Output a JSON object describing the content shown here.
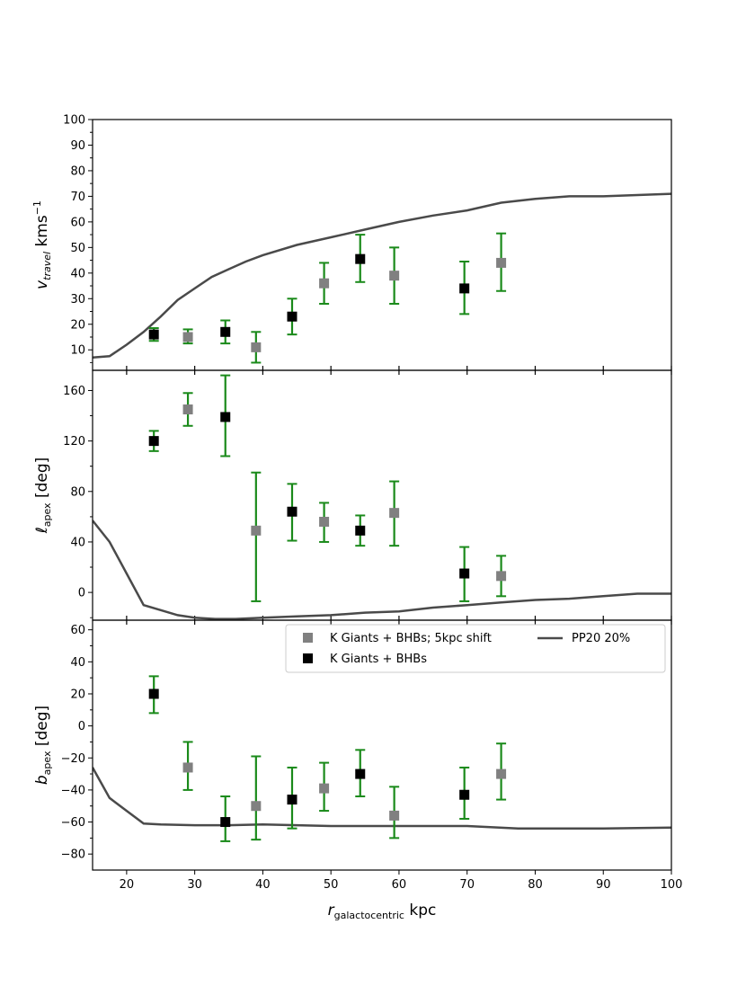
{
  "chart_data": {
    "type": "scatter",
    "shared_x": {
      "label_var": "r",
      "label_sub": "galactocentric",
      "label_unit": " kpc",
      "xlim": [
        15,
        100
      ],
      "ticks": [
        20,
        30,
        40,
        50,
        60,
        70,
        80,
        90,
        100
      ],
      "tick_labels": [
        "20",
        "30",
        "40",
        "50",
        "60",
        "70",
        "80",
        "90",
        "100"
      ]
    },
    "legend": {
      "location": "upper-right of bottom panel",
      "entries": [
        {
          "label": "K Giants + BHBs; 5kpc shift",
          "marker": "square",
          "color": "#808080"
        },
        {
          "label": "K Giants + BHBs",
          "marker": "square",
          "color": "#000000"
        },
        {
          "label": "PP20 20%",
          "marker": "line",
          "color": "#4a4a4a"
        }
      ]
    },
    "colors": {
      "shifted": "#808080",
      "unshifted": "#000000",
      "errorbar": "#1a8a1a",
      "model_line": "#4a4a4a"
    },
    "panels": [
      {
        "id": "v_travel",
        "ylabel_var": "v",
        "ylabel_sub": "travel",
        "ylabel_unit": " kms",
        "ylabel_sup": "−1",
        "ylim": [
          2,
          100
        ],
        "ticks": [
          10,
          20,
          30,
          40,
          50,
          60,
          70,
          80,
          90,
          100
        ],
        "tick_labels": [
          "10",
          "20",
          "30",
          "40",
          "50",
          "60",
          "70",
          "80",
          "90",
          "100"
        ],
        "series": [
          {
            "name": "K Giants + BHBs; 5kpc shift",
            "x": [
              29,
              39,
              49,
              59.3,
              75
            ],
            "y": [
              15,
              11,
              36,
              39,
              44
            ],
            "yerr_low": [
              2.5,
              6,
              8,
              11,
              11
            ],
            "yerr_high": [
              3,
              6,
              8,
              11,
              11.5
            ]
          },
          {
            "name": "K Giants + BHBs",
            "x": [
              24,
              34.5,
              44.3,
              54.3,
              69.6
            ],
            "y": [
              16,
              17,
              23,
              45.5,
              34
            ],
            "yerr_low": [
              2.5,
              4.5,
              7,
              9,
              10
            ],
            "yerr_high": [
              2.5,
              4.5,
              7,
              9.5,
              10.5
            ]
          },
          {
            "name": "PP20 20%",
            "kind": "line",
            "x": [
              15,
              17.5,
              20,
              22.5,
              25,
              27.5,
              30,
              32.5,
              35,
              37.5,
              40,
              45,
              50,
              55,
              60,
              65,
              70,
              75,
              80,
              85,
              90,
              95,
              100
            ],
            "y": [
              7,
              7.5,
              12,
              17,
              23,
              29.5,
              34,
              38.5,
              41.5,
              44.5,
              47,
              51,
              54,
              57,
              60,
              62.5,
              64.5,
              67.5,
              69,
              70,
              70,
              70.5,
              71
            ]
          }
        ]
      },
      {
        "id": "l_apex",
        "ylabel_var": "ℓ",
        "ylabel_sub": "apex",
        "ylabel_unit": " [deg]",
        "ylabel_sup": "",
        "ylim": [
          -22,
          176
        ],
        "ticks": [
          0,
          40,
          80,
          120,
          160
        ],
        "tick_labels": [
          "0",
          "40",
          "80",
          "120",
          "160"
        ],
        "series": [
          {
            "name": "K Giants + BHBs; 5kpc shift",
            "x": [
              29,
              39,
              49,
              59.3,
              75
            ],
            "y": [
              145,
              49,
              56,
              63,
              13
            ],
            "yerr_low": [
              13,
              56,
              16,
              26,
              16
            ],
            "yerr_high": [
              13,
              46,
              15,
              25,
              16
            ]
          },
          {
            "name": "K Giants + BHBs",
            "x": [
              24,
              34.5,
              44.3,
              54.3,
              69.6
            ],
            "y": [
              120,
              139,
              64,
              49,
              15
            ],
            "yerr_low": [
              8,
              31,
              23,
              12,
              22
            ],
            "yerr_high": [
              8,
              33,
              22,
              12,
              21
            ]
          },
          {
            "name": "PP20 20%",
            "kind": "line",
            "x": [
              15,
              17.5,
              20,
              22.5,
              25,
              27.5,
              30,
              33,
              36,
              40,
              45,
              50,
              55,
              60,
              65,
              70,
              75,
              80,
              85,
              90,
              95,
              100
            ],
            "y": [
              57,
              40,
              15,
              -10,
              -14,
              -18,
              -20,
              -21,
              -21,
              -20,
              -19,
              -18,
              -16,
              -15,
              -12,
              -10,
              -8,
              -6,
              -5,
              -3,
              -1,
              -1
            ]
          }
        ]
      },
      {
        "id": "b_apex",
        "ylabel_var": "b",
        "ylabel_sub": "apex",
        "ylabel_unit": " [deg]",
        "ylabel_sup": "",
        "ylim": [
          -90,
          66
        ],
        "ticks": [
          -80,
          -60,
          -40,
          -20,
          0,
          20,
          40,
          60
        ],
        "tick_labels": [
          "−80",
          "−60",
          "−40",
          "−20",
          "0",
          "20",
          "40",
          "60"
        ],
        "series": [
          {
            "name": "K Giants + BHBs; 5kpc shift",
            "x": [
              29,
              39,
              49,
              59.3,
              75
            ],
            "y": [
              -26,
              -50,
              -39,
              -56,
              -30
            ],
            "yerr_low": [
              14,
              21,
              14,
              14,
              16
            ],
            "yerr_high": [
              16,
              31,
              16,
              18,
              19
            ]
          },
          {
            "name": "K Giants + BHBs",
            "x": [
              24,
              34.5,
              44.3,
              54.3,
              69.6
            ],
            "y": [
              20,
              -60,
              -46,
              -30,
              -43
            ],
            "yerr_low": [
              12,
              12,
              18,
              14,
              15
            ],
            "yerr_high": [
              11,
              16,
              20,
              15,
              17
            ]
          },
          {
            "name": "PP20 20%",
            "kind": "line",
            "x": [
              15,
              17.5,
              20,
              22.5,
              25,
              30,
              35,
              40,
              50,
              60,
              70,
              77.5,
              90,
              100
            ],
            "y": [
              -26,
              -45,
              -53,
              -61,
              -61.5,
              -62,
              -62,
              -61.5,
              -62.5,
              -62.5,
              -62.5,
              -64,
              -64,
              -63.5
            ]
          }
        ]
      }
    ]
  }
}
